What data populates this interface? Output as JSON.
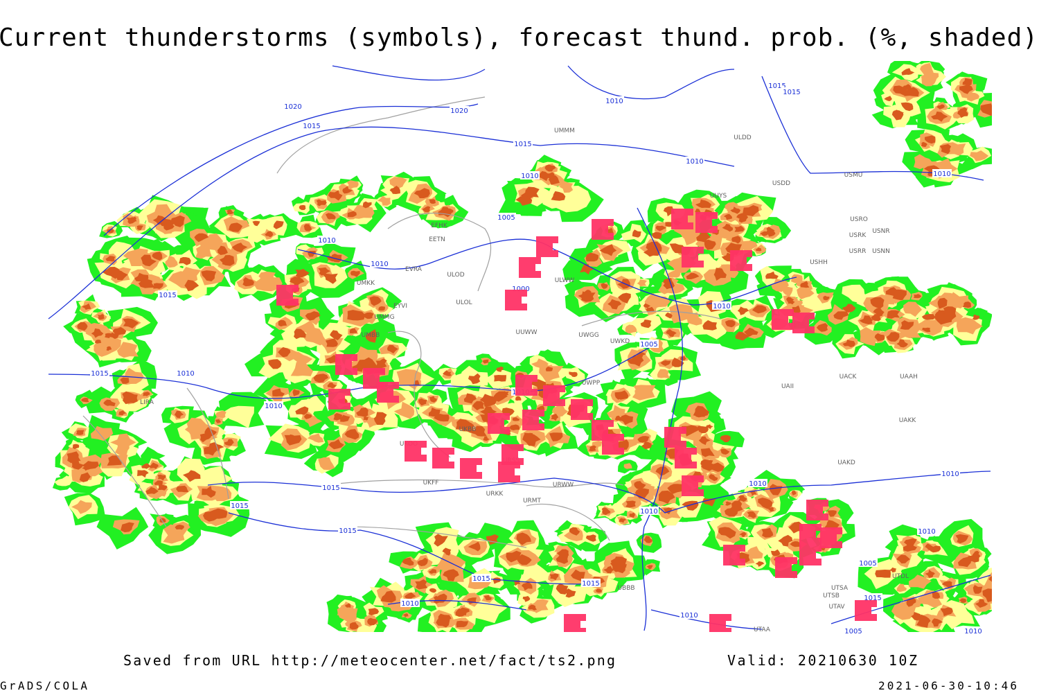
{
  "title": "Current thunderstorms (symbols), forecast thund. prob. (%, shaded)",
  "footer": {
    "source": "Saved from URL http://meteocenter.net/fact/ts2.png",
    "valid": "Valid: 20210630 10Z",
    "software": "GrADS/COLA",
    "timestamp": "2021-06-30-10:46"
  },
  "isobar_labels": [
    "1020",
    "1020",
    "1015",
    "1015",
    "1010",
    "1015",
    "1015",
    "1010",
    "1010",
    "1005",
    "1010",
    "1010",
    "1000",
    "1015",
    "1010",
    "1005",
    "1015",
    "1010",
    "1010",
    "1010",
    "1015",
    "1015",
    "1010",
    "1010",
    "1010",
    "1010",
    "1015",
    "1015",
    "1015",
    "1010",
    "1010",
    "1005",
    "1010",
    "1015",
    "1005",
    "1010"
  ],
  "stations": [
    "ULDD",
    "USDD",
    "USMU",
    "UUYS",
    "USRO",
    "USNR",
    "USRK",
    "USRR",
    "USNN",
    "USHH",
    "EFHK",
    "EETN",
    "EVRA",
    "ULOD",
    "ULWW",
    "UMKK",
    "ULOL",
    "EYVI",
    "UMMG",
    "UMBB",
    "UUWW",
    "UWGG",
    "UWKD",
    "USTR",
    "UWPP",
    "UACK",
    "UAAH",
    "UAII",
    "UKBB",
    "UKOO",
    "URSS",
    "UAKD",
    "UAKK",
    "UKFF",
    "URKK",
    "URMT",
    "URWW",
    "UBBB",
    "UTSA",
    "UTSB",
    "UTAV",
    "UTAA",
    "LIRA",
    "UMMM",
    "UTDL"
  ]
}
